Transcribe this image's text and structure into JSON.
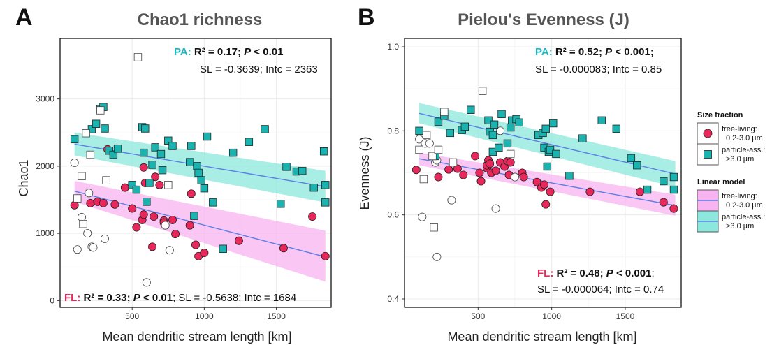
{
  "colors": {
    "fl": "#e8285a",
    "pa": "#1bb3b0",
    "fl_band": "#f8b4f0",
    "pa_band": "#8ce8dc",
    "fit_line": "#5b7fe6",
    "fl_label": "#e8285a",
    "pa_label": "#20b8c0",
    "title": "#555555"
  },
  "x_axis_label": "Mean dendritic stream length [km]",
  "chart_data": [
    {
      "type": "scatter",
      "panel_letter": "A",
      "title": "Chao1 richness",
      "xlabel": "Mean dendritic stream length [km]",
      "ylabel": "Chao1",
      "xlim": [
        0,
        1880
      ],
      "ylim": [
        -100,
        3900
      ],
      "x_ticks": [
        500,
        1000,
        1500
      ],
      "y_ticks": [
        0,
        1000,
        2000,
        3000
      ],
      "grid": true,
      "series": [
        {
          "key": "fl",
          "fraction": "free-living",
          "shape": "circle",
          "filled": true,
          "points": [
            [
              100,
              1420
            ],
            [
              210,
              1450
            ],
            [
              260,
              1470
            ],
            [
              300,
              1450
            ],
            [
              330,
              2250
            ],
            [
              380,
              1430
            ],
            [
              450,
              1680
            ],
            [
              500,
              1370
            ],
            [
              530,
              1090
            ],
            [
              570,
              1200
            ],
            [
              580,
              1980
            ],
            [
              580,
              1280
            ],
            [
              590,
              1750
            ],
            [
              640,
              800
            ],
            [
              650,
              1250
            ],
            [
              660,
              1840
            ],
            [
              690,
              1720
            ],
            [
              720,
              1190
            ],
            [
              720,
              1160
            ],
            [
              780,
              1200
            ],
            [
              800,
              990
            ],
            [
              900,
              1120
            ],
            [
              910,
              1590
            ],
            [
              940,
              830
            ],
            [
              960,
              660
            ],
            [
              1000,
              710
            ],
            [
              1240,
              890
            ],
            [
              1550,
              780
            ],
            [
              1750,
              1250
            ],
            [
              1840,
              660
            ]
          ]
        },
        {
          "key": "fl",
          "fraction": "free-living",
          "shape": "circle",
          "filled": false,
          "points": [
            [
              100,
              2050
            ],
            [
              120,
              760
            ],
            [
              150,
              1240
            ],
            [
              190,
              1000
            ],
            [
              200,
              1600
            ],
            [
              220,
              800
            ],
            [
              230,
              790
            ],
            [
              310,
              920
            ],
            [
              600,
              270
            ],
            [
              730,
              1120
            ],
            [
              760,
              750
            ]
          ]
        },
        {
          "key": "pa",
          "fraction": "particle-associated",
          "shape": "square",
          "filled": true,
          "points": [
            [
              100,
              2400
            ],
            [
              220,
              2550
            ],
            [
              250,
              2630
            ],
            [
              280,
              2850
            ],
            [
              300,
              2880
            ],
            [
              310,
              2560
            ],
            [
              340,
              2230
            ],
            [
              370,
              2170
            ],
            [
              400,
              2260
            ],
            [
              500,
              1720
            ],
            [
              530,
              1650
            ],
            [
              570,
              2580
            ],
            [
              580,
              2200
            ],
            [
              590,
              2560
            ],
            [
              600,
              1470
            ],
            [
              620,
              1750
            ],
            [
              640,
              2020
            ],
            [
              660,
              2280
            ],
            [
              700,
              2180
            ],
            [
              710,
              1940
            ],
            [
              750,
              2380
            ],
            [
              780,
              2300
            ],
            [
              900,
              2060
            ],
            [
              910,
              2300
            ],
            [
              930,
              1260
            ],
            [
              950,
              2000
            ],
            [
              960,
              1900
            ],
            [
              980,
              1790
            ],
            [
              1000,
              1670
            ],
            [
              1020,
              2440
            ],
            [
              1060,
              1460
            ],
            [
              1130,
              770
            ],
            [
              1200,
              2200
            ],
            [
              1310,
              2360
            ],
            [
              1420,
              2550
            ],
            [
              1530,
              1440
            ],
            [
              1570,
              1990
            ],
            [
              1640,
              1920
            ],
            [
              1680,
              1930
            ],
            [
              1760,
              1680
            ],
            [
              1830,
              2220
            ],
            [
              1840,
              1720
            ],
            [
              1840,
              1460
            ]
          ]
        },
        {
          "key": "pa",
          "fraction": "particle-associated",
          "shape": "square",
          "filled": false,
          "points": [
            [
              120,
              1520
            ],
            [
              150,
              1850
            ],
            [
              160,
              1140
            ],
            [
              180,
              2490
            ],
            [
              210,
              2170
            ],
            [
              280,
              2830
            ],
            [
              320,
              1790
            ],
            [
              540,
              3620
            ],
            [
              750,
              1720
            ]
          ]
        }
      ],
      "fits": [
        {
          "key": "fl",
          "x": [
            100,
            1840
          ],
          "y": [
            1628,
            650
          ],
          "band_lower": [
            1470,
            280
          ],
          "band_upper": [
            1780,
            1040
          ]
        },
        {
          "key": "pa",
          "x": [
            100,
            1840
          ],
          "y": [
            2327,
            1694
          ],
          "band_lower": [
            2160,
            1460
          ],
          "band_upper": [
            2500,
            1930
          ]
        }
      ],
      "annotations": [
        {
          "key": "pa",
          "label": "PA:",
          "stat": "R² = 0.17; ",
          "p_italic": "P",
          "p_rest": " < 0.01",
          "line2": "SL = -0.3639; Intc = 2363"
        },
        {
          "key": "fl",
          "label": "FL:",
          "stat": "R² = 0.33; ",
          "p_italic": "P",
          "p_rest": " < 0.01",
          "tail": "; SL = -0.5638; Intc = 1684"
        }
      ]
    },
    {
      "type": "scatter",
      "panel_letter": "B",
      "title": "Pielou's Evenness (J)",
      "xlabel": "Mean dendritic stream length [km]",
      "ylabel": "Evenness (J)",
      "xlim": [
        0,
        1880
      ],
      "ylim": [
        0.38,
        1.02
      ],
      "x_ticks": [
        500,
        1000,
        1500
      ],
      "y_ticks": [
        0.4,
        0.6,
        0.8,
        1.0
      ],
      "y_tick_labels": [
        "0.4",
        "0.6",
        "0.8",
        "1.0"
      ],
      "grid": true,
      "series": [
        {
          "key": "fl",
          "fraction": "free-living",
          "shape": "circle",
          "filled": true,
          "points": [
            [
              80,
              0.707
            ],
            [
              230,
              0.69
            ],
            [
              300,
              0.708
            ],
            [
              360,
              0.71
            ],
            [
              400,
              0.695
            ],
            [
              480,
              0.74
            ],
            [
              510,
              0.7
            ],
            [
              520,
              0.68
            ],
            [
              560,
              0.711
            ],
            [
              560,
              0.718
            ],
            [
              570,
              0.73
            ],
            [
              580,
              0.722
            ],
            [
              590,
              0.7
            ],
            [
              620,
              0.705
            ],
            [
              650,
              0.725
            ],
            [
              680,
              0.715
            ],
            [
              700,
              0.728
            ],
            [
              710,
              0.695
            ],
            [
              720,
              0.725
            ],
            [
              800,
              0.7
            ],
            [
              810,
              0.69
            ],
            [
              900,
              0.678
            ],
            [
              930,
              0.665
            ],
            [
              950,
              0.672
            ],
            [
              960,
              0.625
            ],
            [
              990,
              0.655
            ],
            [
              1260,
              0.655
            ],
            [
              1600,
              0.655
            ],
            [
              1760,
              0.63
            ],
            [
              1830,
              0.615
            ]
          ]
        },
        {
          "key": "fl",
          "fraction": "free-living",
          "shape": "circle",
          "filled": false,
          "points": [
            [
              100,
              0.78
            ],
            [
              120,
              0.595
            ],
            [
              140,
              0.77
            ],
            [
              170,
              0.77
            ],
            [
              210,
              0.725
            ],
            [
              220,
              0.73
            ],
            [
              220,
              0.5
            ],
            [
              320,
              0.635
            ],
            [
              620,
              0.615
            ],
            [
              650,
              0.8
            ],
            [
              750,
              0.69
            ]
          ]
        },
        {
          "key": "pa",
          "fraction": "particle-associated",
          "shape": "square",
          "filled": true,
          "points": [
            [
              100,
              0.8
            ],
            [
              210,
              0.74
            ],
            [
              230,
              0.822
            ],
            [
              270,
              0.836
            ],
            [
              310,
              0.795
            ],
            [
              390,
              0.802
            ],
            [
              410,
              0.81
            ],
            [
              450,
              0.85
            ],
            [
              570,
              0.825
            ],
            [
              580,
              0.798
            ],
            [
              600,
              0.79
            ],
            [
              600,
              0.75
            ],
            [
              610,
              0.815
            ],
            [
              640,
              0.76
            ],
            [
              660,
              0.84
            ],
            [
              700,
              0.77
            ],
            [
              720,
              0.808
            ],
            [
              730,
              0.825
            ],
            [
              760,
              0.828
            ],
            [
              780,
              0.82
            ],
            [
              910,
              0.79
            ],
            [
              940,
              0.795
            ],
            [
              950,
              0.76
            ],
            [
              960,
              0.805
            ],
            [
              970,
              0.715
            ],
            [
              980,
              0.75
            ],
            [
              990,
              0.755
            ],
            [
              1010,
              0.818
            ],
            [
              1030,
              0.745
            ],
            [
              1120,
              0.693
            ],
            [
              1210,
              0.782
            ],
            [
              1340,
              0.825
            ],
            [
              1440,
              0.805
            ],
            [
              1540,
              0.735
            ],
            [
              1580,
              0.718
            ],
            [
              1650,
              0.66
            ],
            [
              1760,
              0.68
            ],
            [
              1830,
              0.69
            ],
            [
              1830,
              0.66
            ]
          ]
        },
        {
          "key": "pa",
          "fraction": "particle-associated",
          "shape": "square",
          "filled": false,
          "points": [
            [
              100,
              0.755
            ],
            [
              130,
              0.685
            ],
            [
              150,
              0.79
            ],
            [
              190,
              0.74
            ],
            [
              200,
              0.57
            ],
            [
              230,
              0.755
            ],
            [
              270,
              0.845
            ],
            [
              330,
              0.725
            ],
            [
              530,
              0.895
            ],
            [
              720,
              0.745
            ]
          ]
        }
      ],
      "fits": [
        {
          "key": "fl",
          "x": [
            100,
            1840
          ],
          "y": [
            0.7336,
            0.6222
          ],
          "band_lower": [
            0.718,
            0.598
          ],
          "band_upper": [
            0.748,
            0.648
          ]
        },
        {
          "key": "pa",
          "x": [
            100,
            1840
          ],
          "y": [
            0.8417,
            0.6973
          ],
          "band_lower": [
            0.818,
            0.666
          ],
          "band_upper": [
            0.866,
            0.728
          ]
        }
      ],
      "annotations": [
        {
          "key": "pa",
          "label": "PA:",
          "stat": "R² = 0.52; ",
          "p_italic": "P",
          "p_rest": " < 0.001;",
          "line2": "SL = -0.000083; Intc = 0.85"
        },
        {
          "key": "fl",
          "label": "FL:",
          "stat": "R² = 0.48; ",
          "p_italic": "P",
          "p_rest": " < 0.001",
          "tail": ";",
          "line2": "SL = -0.000064; Intc = 0.74"
        }
      ]
    }
  ],
  "legend": {
    "size_fraction_title": "Size fraction",
    "linear_model_title": "Linear model",
    "items": [
      {
        "key": "fl",
        "line1": "free-living:",
        "line2": "0.2-3.0 µm"
      },
      {
        "key": "pa",
        "line1": "particle-ass.:",
        "line2": ">3.0 µm"
      }
    ],
    "position": "right"
  }
}
